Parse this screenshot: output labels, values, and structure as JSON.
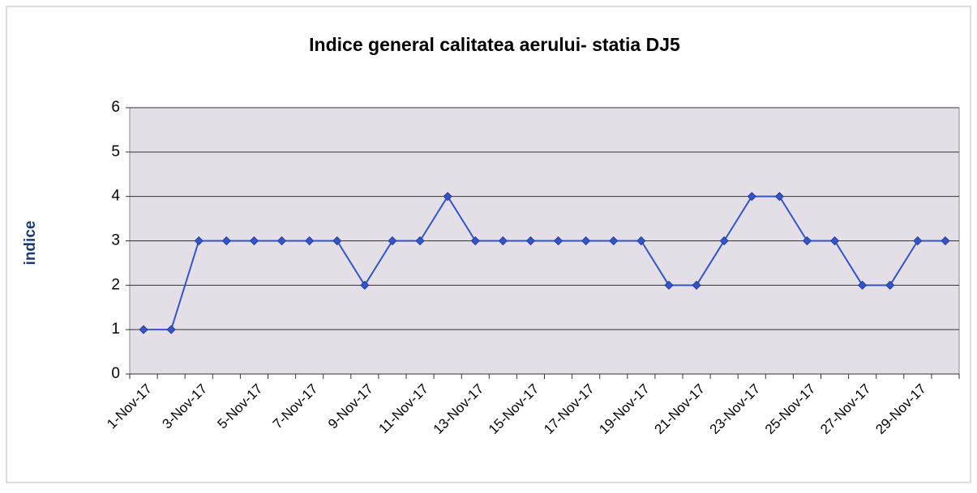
{
  "chart_data": {
    "type": "line",
    "title": "Indice general calitatea aerului-  statia DJ5",
    "y_label": "indice",
    "categories": [
      "1-Nov-17",
      null,
      "3-Nov-17",
      null,
      "5-Nov-17",
      null,
      "7-Nov-17",
      null,
      "9-Nov-17",
      null,
      "11-Nov-17",
      null,
      "13-Nov-17",
      null,
      "15-Nov-17",
      null,
      "17-Nov-17",
      null,
      "19-Nov-17",
      null,
      "21-Nov-17",
      null,
      "23-Nov-17",
      null,
      "25-Nov-17",
      null,
      "27-Nov-17",
      null,
      "29-Nov-17",
      null
    ],
    "series": [
      {
        "name": "indice",
        "color": "#3355cc",
        "values": [
          1,
          1,
          3,
          3,
          3,
          3,
          3,
          3,
          2,
          3,
          3,
          4,
          3,
          3,
          3,
          3,
          3,
          3,
          3,
          2,
          2,
          3,
          4,
          4,
          3,
          3,
          2,
          2,
          3,
          3
        ]
      }
    ],
    "ylim": [
      0,
      6
    ],
    "yticks": [
      0,
      1,
      2,
      3,
      4,
      5,
      6
    ],
    "grid": true
  }
}
